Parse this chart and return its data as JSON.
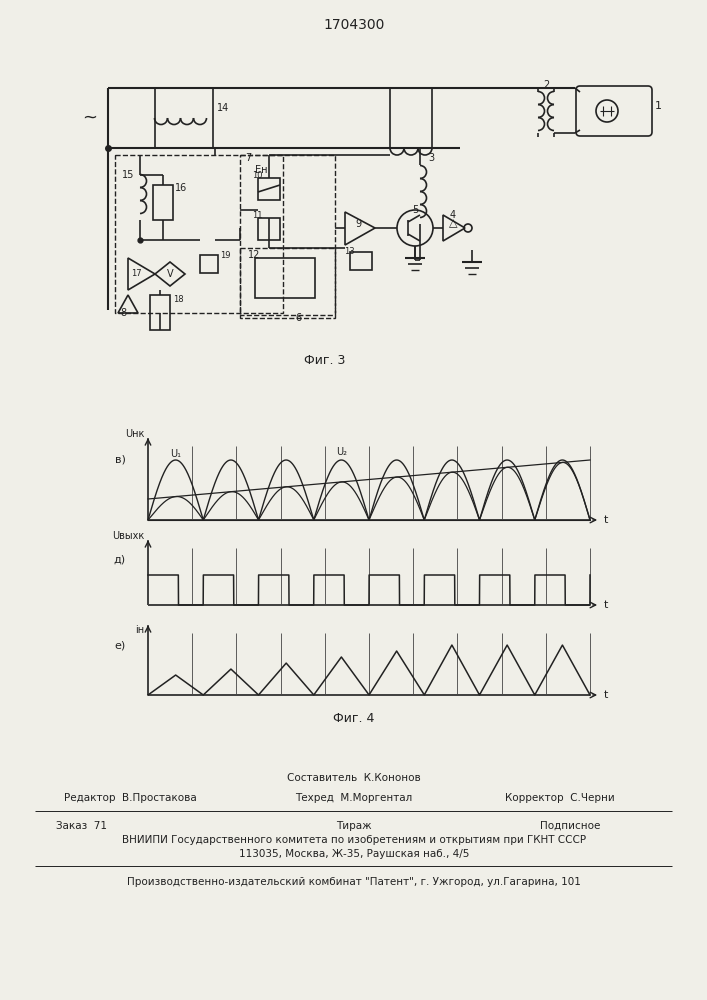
{
  "title": "1704300",
  "fig3_caption": "Фиг. 3",
  "fig4_caption": "Фиг. 4",
  "bottom_text_line1": "Составитель  К.Кононов",
  "bottom_text_line2a": "Редактор  В.Простакова",
  "bottom_text_line2b": "Техред  М.Моргентал",
  "bottom_text_line2c": "Корректор  С.Черни",
  "bottom_text_line3a": "Заказ  71",
  "bottom_text_line3b": "Тираж",
  "bottom_text_line3c": "Подписное",
  "bottom_text_line4": "ВНИИПИ Государственного комитета по изобретениям и открытиям при ГКНТ СССР",
  "bottom_text_line5": "113035, Москва, Ж-35, Раушская наб., 4/5",
  "bottom_text_line6": "Производственно-издательский комбинат \"Патент\", г. Ужгород, ул.Гагарина, 101",
  "bg_color": "#f0efe8",
  "line_color": "#222222",
  "grid_color": "#444444"
}
